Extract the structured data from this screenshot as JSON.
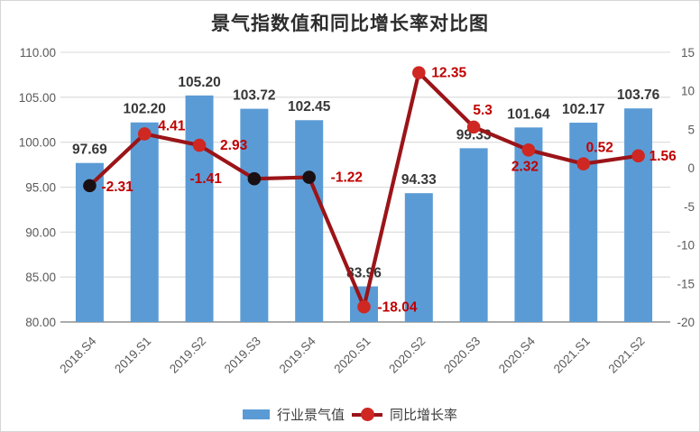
{
  "title": "景气指数值和同比增长率对比图",
  "legend": {
    "items": [
      {
        "label": "行业景气值",
        "marker": "bar-swatch"
      },
      {
        "label": "同比增长率",
        "marker": "line-dot-swatch"
      }
    ]
  },
  "colors": {
    "bar": "#5B9BD5",
    "line": "#9B1418",
    "marker_red": "#CF2722",
    "marker_dark": "#1A1014",
    "line_label": "#C00000",
    "bar_label": "#373737",
    "axis_text": "#595959",
    "gridline": "#D9D9D9",
    "axis_line": "#8F8F8F",
    "background": "#FFFFFF"
  },
  "chart_data": {
    "type": "combo",
    "title": "景气指数值和同比增长率对比图",
    "categories": [
      "2018.S4",
      "2019.S1",
      "2019.S2",
      "2019.S3",
      "2019.S4",
      "2020.S1",
      "2020.S2",
      "2020.S3",
      "2020.S4",
      "2021.S1",
      "2021.S2"
    ],
    "series": [
      {
        "name": "行业景气值",
        "type": "bar",
        "axis": "left",
        "values": [
          97.69,
          102.2,
          105.2,
          103.72,
          102.45,
          83.96,
          94.33,
          99.33,
          101.64,
          102.17,
          103.76
        ],
        "labels": [
          "97.69",
          "102.20",
          "105.20",
          "103.72",
          "102.45",
          "83.96",
          "94.33",
          "99.33",
          "101.64",
          "102.17",
          "103.76"
        ]
      },
      {
        "name": "同比增长率",
        "type": "line",
        "axis": "right",
        "values": [
          -2.31,
          4.41,
          2.93,
          -1.41,
          -1.22,
          -18.04,
          12.35,
          5.3,
          2.32,
          0.52,
          1.56
        ],
        "labels": [
          "-2.31",
          "4.41",
          "2.93",
          "-1.41",
          "-1.22",
          "-18.04",
          "12.35",
          "5.3",
          "2.32",
          "0.52",
          "1.56"
        ],
        "marker_colors": [
          "dark",
          "red",
          "red",
          "dark",
          "dark",
          "red",
          "red",
          "red",
          "red",
          "red",
          "red"
        ],
        "label_pos": [
          {
            "anchor": "start",
            "dx": 13,
            "dy": 6
          },
          {
            "anchor": "start",
            "dx": 15,
            "dy": -4
          },
          {
            "anchor": "start",
            "dx": 23,
            "dy": 5
          },
          {
            "anchor": "end",
            "dx": -36,
            "dy": 5
          },
          {
            "anchor": "start",
            "dx": 24,
            "dy": 5
          },
          {
            "anchor": "start",
            "dx": 15,
            "dy": 5
          },
          {
            "anchor": "start",
            "dx": 14,
            "dy": 5
          },
          {
            "anchor": "middle",
            "dx": 10,
            "dy": -14
          },
          {
            "anchor": "middle",
            "dx": -4,
            "dy": 23
          },
          {
            "anchor": "middle",
            "dx": 18,
            "dy": -13
          },
          {
            "anchor": "start",
            "dx": 12,
            "dy": 5
          }
        ]
      }
    ],
    "left_axis": {
      "min": 80,
      "max": 110,
      "step": 5,
      "tick_labels": [
        "110.00",
        "105.00",
        "100.00",
        "95.00",
        "90.00",
        "85.00",
        "80.00"
      ]
    },
    "right_axis": {
      "min": -20,
      "max": 15,
      "step": 5,
      "tick_labels": [
        "15",
        "10",
        "5",
        "0",
        "-5",
        "-10",
        "-15",
        "-20"
      ]
    },
    "grid": true,
    "legend_position": "bottom"
  }
}
